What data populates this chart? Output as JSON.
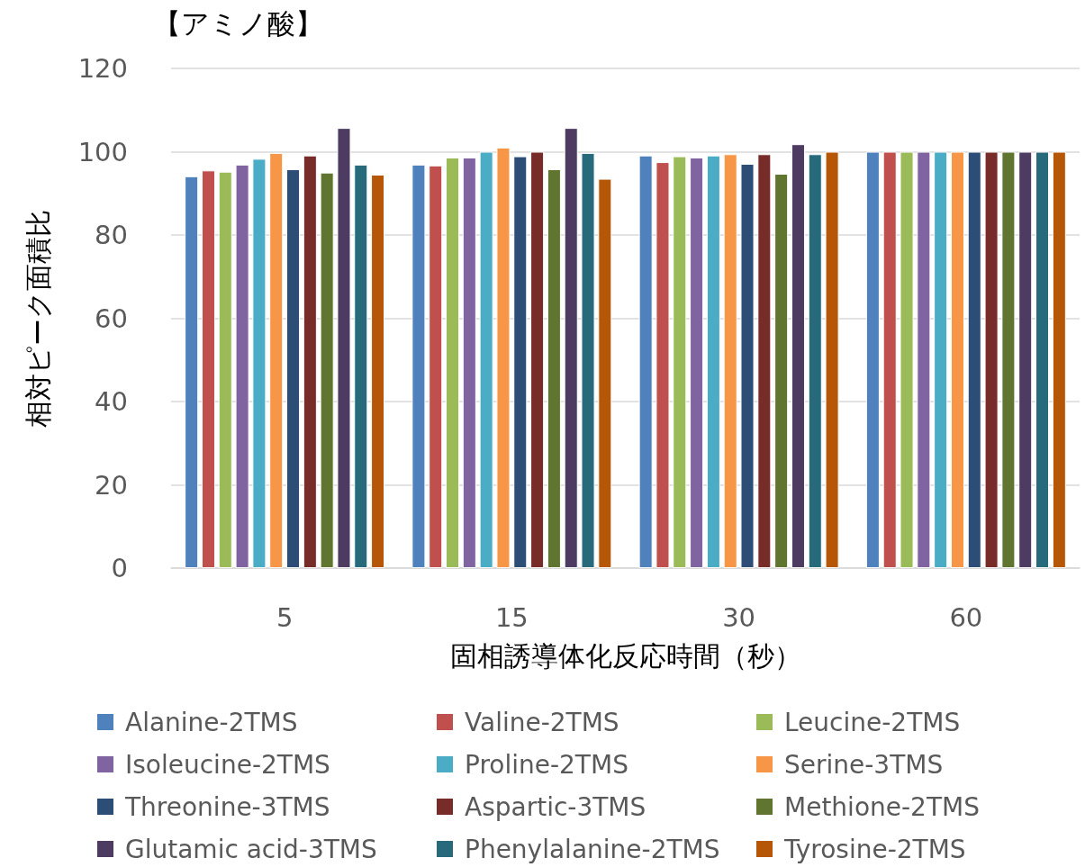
{
  "chart_data": {
    "type": "bar",
    "title": "【アミノ酸】",
    "xlabel": "固相誘導体化反応時間（秒）",
    "ylabel": "相対ピーク面積比",
    "categories": [
      "5",
      "15",
      "30",
      "60"
    ],
    "ylim": [
      0,
      120
    ],
    "yticks": [
      0,
      20,
      40,
      60,
      80,
      100,
      120
    ],
    "grid": "y",
    "legend": "bottom",
    "series": [
      {
        "name": "Alanine-2TMS",
        "color": "#4f81bd",
        "values": [
          94.1,
          96.9,
          99.1,
          100
        ]
      },
      {
        "name": "Valine-2TMS",
        "color": "#c0504d",
        "values": [
          95.5,
          96.7,
          97.5,
          100
        ]
      },
      {
        "name": "Leucine-2TMS",
        "color": "#9bbb59",
        "values": [
          95.2,
          98.6,
          98.9,
          100
        ]
      },
      {
        "name": "Isoleucine-2TMS",
        "color": "#8064a2",
        "values": [
          96.9,
          98.6,
          98.6,
          100
        ]
      },
      {
        "name": "Proline-2TMS",
        "color": "#4bacc6",
        "values": [
          98.3,
          100,
          99.1,
          100
        ]
      },
      {
        "name": "Serine-3TMS",
        "color": "#f79646",
        "values": [
          99.7,
          101.0,
          99.4,
          100
        ]
      },
      {
        "name": "Threonine-3TMS",
        "color": "#2c4d75",
        "values": [
          95.8,
          98.9,
          97.1,
          100
        ]
      },
      {
        "name": "Aspartic-3TMS",
        "color": "#772c2a",
        "values": [
          99.1,
          100,
          99.4,
          100
        ]
      },
      {
        "name": "Methione-2TMS",
        "color": "#5f7530",
        "values": [
          95.0,
          95.8,
          94.7,
          100
        ]
      },
      {
        "name": "Glutamic acid-3TMS",
        "color": "#4d3b62",
        "values": [
          105.7,
          105.7,
          101.8,
          100
        ]
      },
      {
        "name": "Phenylalanine-2TMS",
        "color": "#276a7c",
        "values": [
          96.9,
          99.7,
          99.4,
          100
        ]
      },
      {
        "name": "Tyrosine-2TMS",
        "color": "#b65708",
        "values": [
          94.5,
          93.5,
          100,
          100
        ]
      }
    ]
  }
}
